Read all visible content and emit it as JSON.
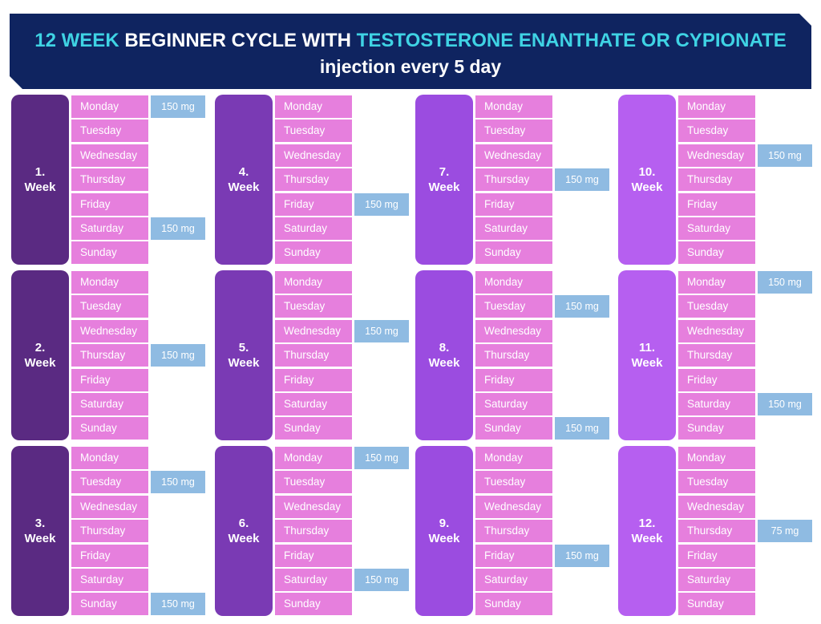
{
  "title": {
    "part1": "12 WEEK",
    "part2": " BEGINNER CYCLE WITH ",
    "part3": "TESTOSTERONE ENANTHATE OR CYPIONATE",
    "subtitle": "injection every 5 day"
  },
  "colors": {
    "banner": "#0f2460",
    "highlight": "#3fd3e4",
    "day_cell": "#e67fdd",
    "dose_cell": "#8fbbe2",
    "week_column_colors": [
      "#5a2a82",
      "#7a3ab4",
      "#9b4ce0",
      "#b65ff0"
    ]
  },
  "days": [
    "Monday",
    "Tuesday",
    "Wednesday",
    "Thursday",
    "Friday",
    "Saturday",
    "Sunday"
  ],
  "week_word": "Week",
  "weeks": [
    {
      "number": "1.",
      "doses": [
        "150 mg",
        "",
        "",
        "",
        "",
        "150 mg",
        ""
      ]
    },
    {
      "number": "2.",
      "doses": [
        "",
        "",
        "",
        "150 mg",
        "",
        "",
        ""
      ]
    },
    {
      "number": "3.",
      "doses": [
        "",
        "150 mg",
        "",
        "",
        "",
        "",
        "150 mg"
      ]
    },
    {
      "number": "4.",
      "doses": [
        "",
        "",
        "",
        "",
        "150 mg",
        "",
        ""
      ]
    },
    {
      "number": "5.",
      "doses": [
        "",
        "",
        "150 mg",
        "",
        "",
        "",
        ""
      ]
    },
    {
      "number": "6.",
      "doses": [
        "150 mg",
        "",
        "",
        "",
        "",
        "150 mg",
        ""
      ]
    },
    {
      "number": "7.",
      "doses": [
        "",
        "",
        "",
        "150 mg",
        "",
        "",
        ""
      ]
    },
    {
      "number": "8.",
      "doses": [
        "",
        "150 mg",
        "",
        "",
        "",
        "",
        "150 mg"
      ]
    },
    {
      "number": "9.",
      "doses": [
        "",
        "",
        "",
        "",
        "150 mg",
        "",
        ""
      ]
    },
    {
      "number": "10.",
      "doses": [
        "",
        "",
        "150 mg",
        "",
        "",
        "",
        ""
      ]
    },
    {
      "number": "11.",
      "doses": [
        "150 mg",
        "",
        "",
        "",
        "",
        "150 mg",
        ""
      ]
    },
    {
      "number": "12.",
      "doses": [
        "",
        "",
        "",
        "75 mg",
        "",
        "",
        ""
      ]
    }
  ]
}
